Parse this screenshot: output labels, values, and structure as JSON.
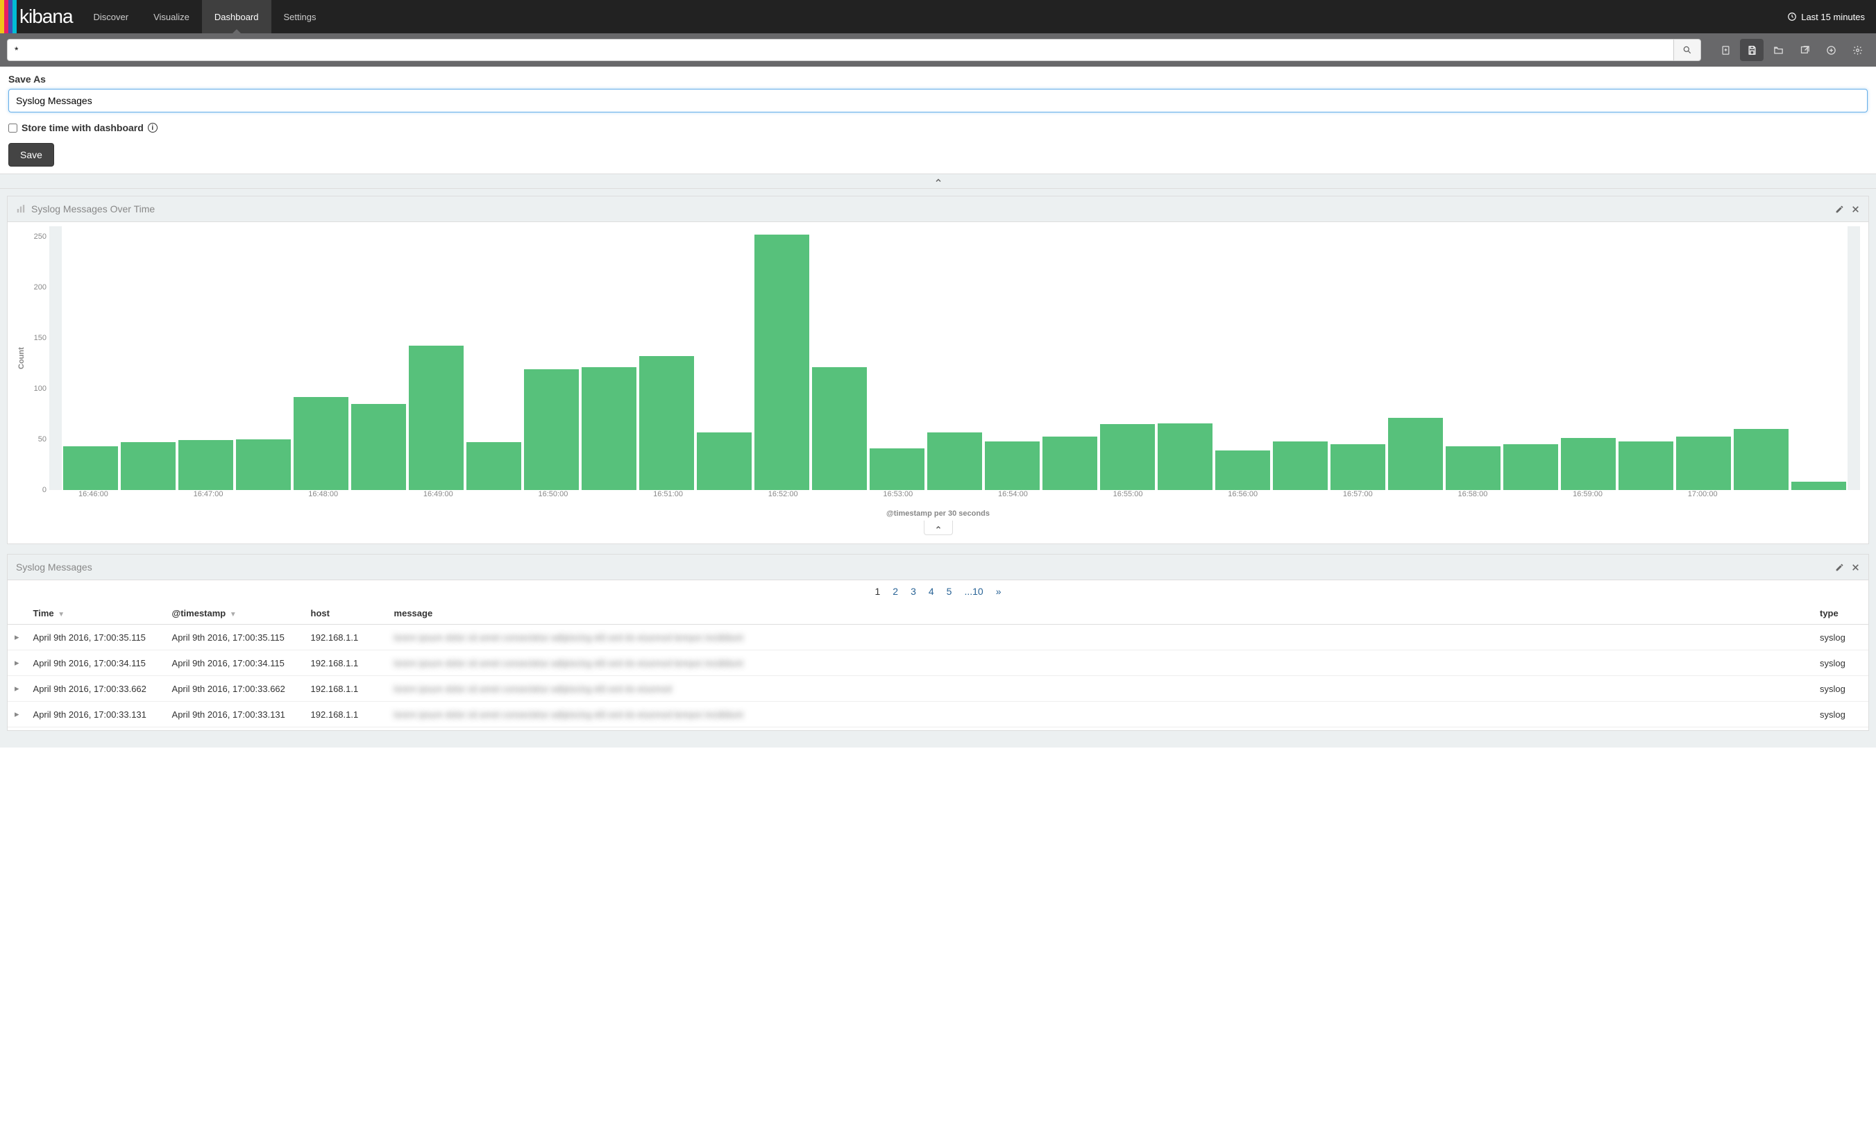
{
  "brand": {
    "name": "kibana",
    "stripe_colors": [
      "#f0c419",
      "#e91e63",
      "#3f51b5",
      "#00bcd4"
    ]
  },
  "nav": {
    "items": [
      "Discover",
      "Visualize",
      "Dashboard",
      "Settings"
    ],
    "active_index": 2,
    "time_label": "Last 15 minutes"
  },
  "search": {
    "query": "*"
  },
  "toolbar_active_index": 1,
  "save_panel": {
    "heading": "Save As",
    "value": "Syslog Messages",
    "store_time_label": "Store time with dashboard",
    "save_button": "Save"
  },
  "chart_panel": {
    "title": "Syslog Messages Over Time",
    "chart": {
      "type": "bar",
      "ylabel": "Count",
      "xlabel": "@timestamp per 30 seconds",
      "ylim": [
        0,
        260
      ],
      "ytick_step": 50,
      "yticks": [
        0,
        50,
        100,
        150,
        200,
        250
      ],
      "bar_color": "#57c17b",
      "background_color": "#ffffff",
      "band_color": "#ecf0f1",
      "label_fontsize": 11,
      "x_tick_labels": [
        "16:46:00",
        "16:47:00",
        "16:48:00",
        "16:49:00",
        "16:50:00",
        "16:51:00",
        "16:52:00",
        "16:53:00",
        "16:54:00",
        "16:55:00",
        "16:56:00",
        "16:57:00",
        "16:58:00",
        "16:59:00",
        "17:00:00"
      ],
      "values": [
        43,
        47,
        49,
        50,
        92,
        85,
        142,
        47,
        119,
        121,
        132,
        57,
        252,
        121,
        41,
        57,
        48,
        53,
        65,
        66,
        39,
        48,
        45,
        71,
        43,
        45,
        51,
        48,
        53,
        60,
        8
      ]
    }
  },
  "table_panel": {
    "title": "Syslog Messages",
    "pagination": {
      "pages": [
        "1",
        "2",
        "3",
        "4",
        "5",
        "...10",
        "»"
      ],
      "current_index": 0
    },
    "columns": [
      "Time",
      "@timestamp",
      "host",
      "message",
      "type"
    ],
    "sorted_columns": [
      0,
      1
    ],
    "rows": [
      {
        "time": "April 9th 2016, 17:00:35.115",
        "timestamp": "April 9th 2016, 17:00:35.115",
        "host": "192.168.1.1",
        "message": "lorem ipsum dolor sit amet consectetur adipiscing elit sed do eiusmod tempor incididunt",
        "type": "syslog"
      },
      {
        "time": "April 9th 2016, 17:00:34.115",
        "timestamp": "April 9th 2016, 17:00:34.115",
        "host": "192.168.1.1",
        "message": "lorem ipsum dolor sit amet consectetur adipiscing elit sed do eiusmod tempor incididunt",
        "type": "syslog"
      },
      {
        "time": "April 9th 2016, 17:00:33.662",
        "timestamp": "April 9th 2016, 17:00:33.662",
        "host": "192.168.1.1",
        "message": "lorem ipsum dolor sit amet consectetur adipiscing elit sed do eiusmod",
        "type": "syslog"
      },
      {
        "time": "April 9th 2016, 17:00:33.131",
        "timestamp": "April 9th 2016, 17:00:33.131",
        "host": "192.168.1.1",
        "message": "lorem ipsum dolor sit amet consectetur adipiscing elit sed do eiusmod tempor incididunt",
        "type": "syslog"
      }
    ]
  }
}
